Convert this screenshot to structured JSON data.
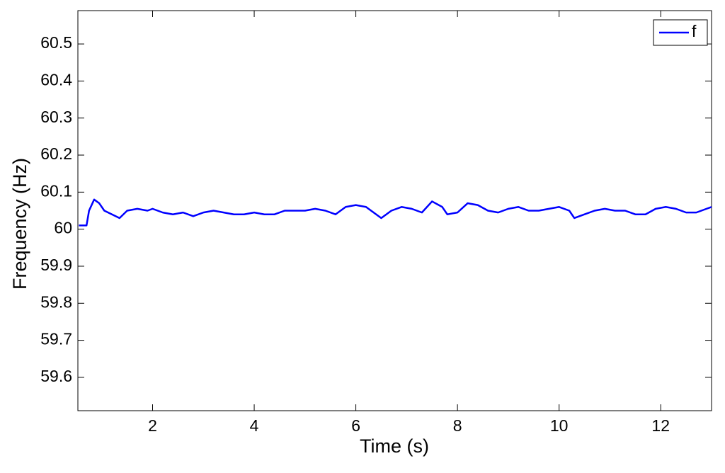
{
  "chart_data": {
    "type": "line",
    "xlabel": "Time (s)",
    "ylabel": "Frequency (Hz)",
    "x": [
      0.55,
      0.7,
      0.75,
      0.85,
      0.95,
      1.05,
      1.2,
      1.35,
      1.5,
      1.7,
      1.9,
      2.0,
      2.2,
      2.4,
      2.6,
      2.8,
      3.0,
      3.2,
      3.4,
      3.6,
      3.8,
      4.0,
      4.2,
      4.4,
      4.6,
      4.8,
      5.0,
      5.2,
      5.4,
      5.6,
      5.8,
      6.0,
      6.2,
      6.4,
      6.5,
      6.7,
      6.9,
      7.1,
      7.3,
      7.5,
      7.7,
      7.8,
      8.0,
      8.2,
      8.4,
      8.6,
      8.8,
      9.0,
      9.2,
      9.4,
      9.6,
      9.8,
      10.0,
      10.2,
      10.3,
      10.5,
      10.7,
      10.9,
      11.1,
      11.3,
      11.5,
      11.7,
      11.9,
      12.1,
      12.3,
      12.5,
      12.7,
      12.9,
      13.0
    ],
    "series": [
      {
        "name": "f",
        "color": "#0000ff",
        "values": [
          60.01,
          60.01,
          60.05,
          60.08,
          60.07,
          60.05,
          60.04,
          60.03,
          60.05,
          60.055,
          60.05,
          60.055,
          60.045,
          60.04,
          60.045,
          60.035,
          60.045,
          60.05,
          60.045,
          60.04,
          60.04,
          60.045,
          60.04,
          60.04,
          60.05,
          60.05,
          60.05,
          60.055,
          60.05,
          60.04,
          60.06,
          60.065,
          60.06,
          60.04,
          60.03,
          60.05,
          60.06,
          60.055,
          60.045,
          60.075,
          60.06,
          60.04,
          60.045,
          60.07,
          60.065,
          60.05,
          60.045,
          60.055,
          60.06,
          60.05,
          60.05,
          60.055,
          60.06,
          60.05,
          60.03,
          60.04,
          60.05,
          60.055,
          60.05,
          60.05,
          60.04,
          60.04,
          60.055,
          60.06,
          60.055,
          60.045,
          60.045,
          60.055,
          60.06
        ]
      }
    ],
    "xlim": [
      0.53,
      13
    ],
    "xticks": [
      2,
      4,
      6,
      8,
      10,
      12
    ],
    "ylim": [
      59.51,
      60.59
    ],
    "yticks": [
      59.6,
      59.7,
      59.8,
      59.9,
      60,
      60.1,
      60.2,
      60.3,
      60.4,
      60.5
    ],
    "grid": false,
    "legend": "top-right"
  }
}
